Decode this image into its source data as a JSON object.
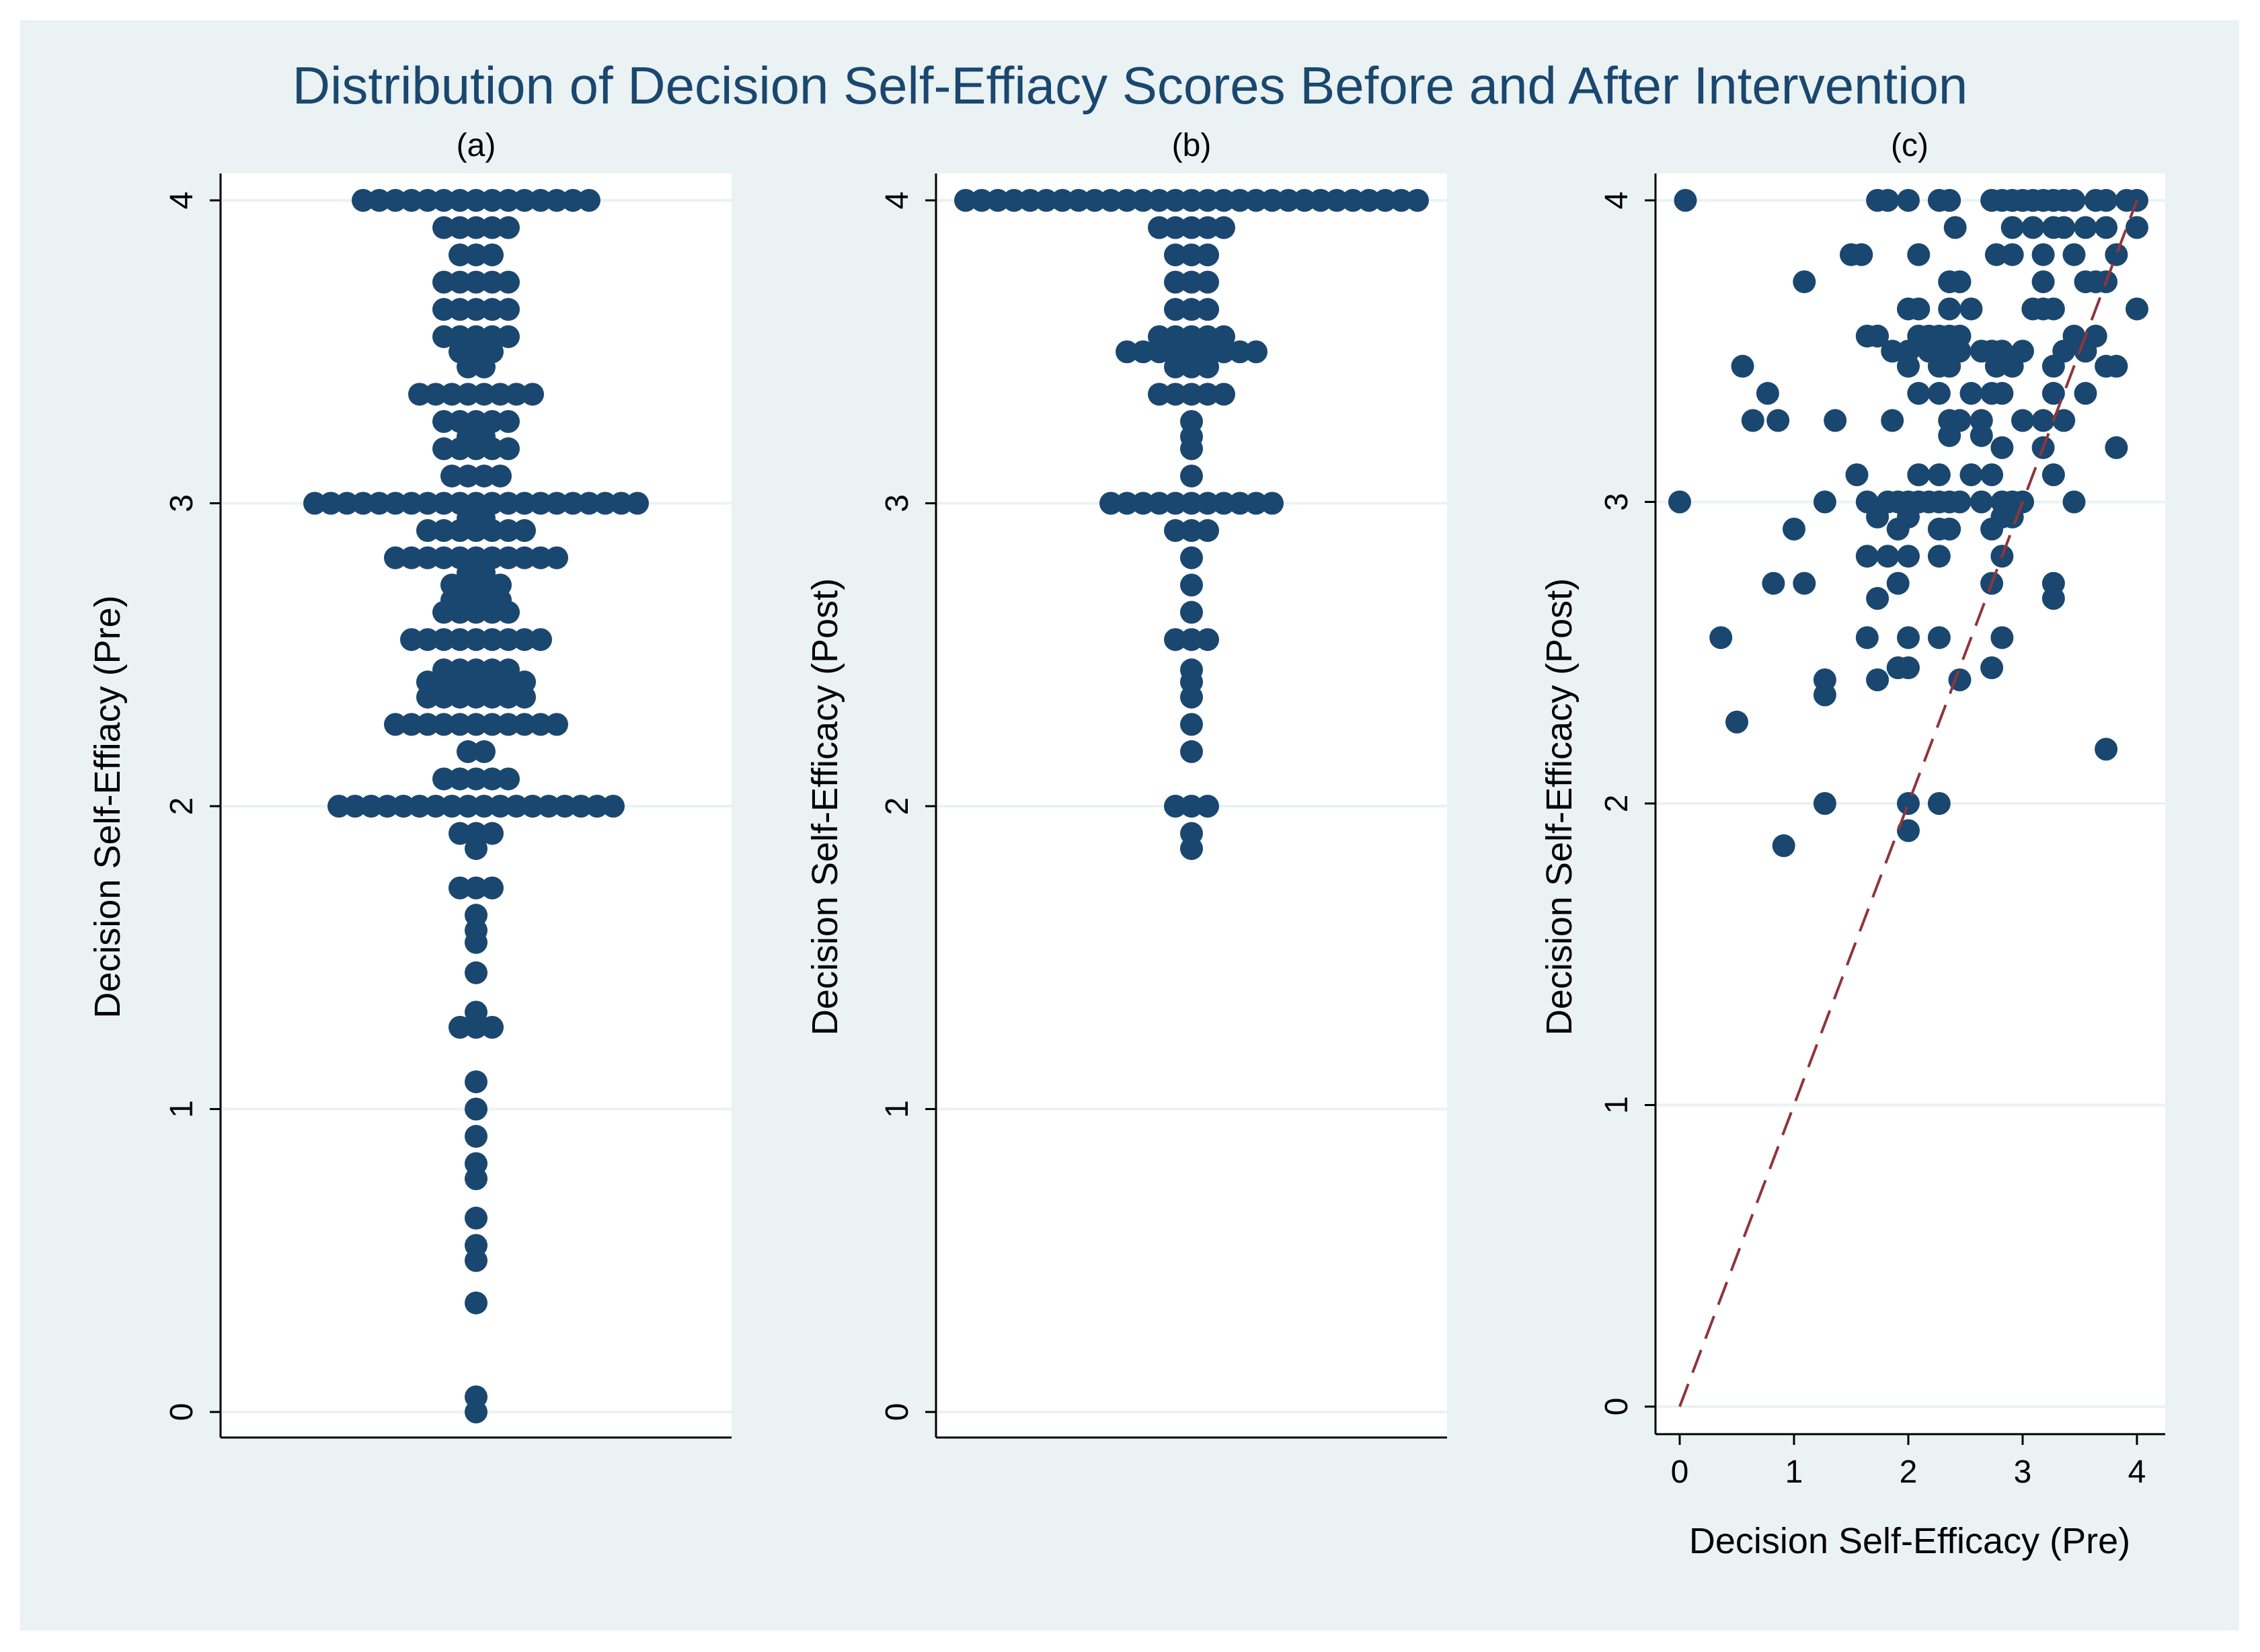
{
  "chart_data": {
    "title": "Distribution of Decision Self-Effiacy Scores Before and After Intervention",
    "colors": {
      "background": "#eaf2f3",
      "marker": "#1a476f",
      "reference_line": "#90353b",
      "grid": "#eaf2f3"
    },
    "panels": [
      {
        "id": "a",
        "type": "dotplot",
        "title": "(a)",
        "ylabel": "Decision Self-Effiacy (Pre)",
        "ylim": [
          0,
          4
        ],
        "yticks": [
          "0",
          "1",
          "2",
          "3",
          "4"
        ],
        "grid": true,
        "groups": [
          {
            "y": 4.0,
            "count": 15
          },
          {
            "y": 3.91,
            "count": 5
          },
          {
            "y": 3.82,
            "count": 3
          },
          {
            "y": 3.73,
            "count": 5
          },
          {
            "y": 3.64,
            "count": 5
          },
          {
            "y": 3.55,
            "count": 5
          },
          {
            "y": 3.5,
            "count": 3
          },
          {
            "y": 3.45,
            "count": 2
          },
          {
            "y": 3.36,
            "count": 8
          },
          {
            "y": 3.27,
            "count": 5
          },
          {
            "y": 3.22,
            "count": 2
          },
          {
            "y": 3.18,
            "count": 5
          },
          {
            "y": 3.09,
            "count": 4
          },
          {
            "y": 3.0,
            "count": 21
          },
          {
            "y": 2.95,
            "count": 2
          },
          {
            "y": 2.91,
            "count": 7
          },
          {
            "y": 2.82,
            "count": 11
          },
          {
            "y": 2.77,
            "count": 2
          },
          {
            "y": 2.73,
            "count": 4
          },
          {
            "y": 2.68,
            "count": 4
          },
          {
            "y": 2.64,
            "count": 5
          },
          {
            "y": 2.55,
            "count": 9
          },
          {
            "y": 2.45,
            "count": 5
          },
          {
            "y": 2.41,
            "count": 7
          },
          {
            "y": 2.36,
            "count": 7
          },
          {
            "y": 2.27,
            "count": 11
          },
          {
            "y": 2.18,
            "count": 2
          },
          {
            "y": 2.09,
            "count": 5
          },
          {
            "y": 2.0,
            "count": 18
          },
          {
            "y": 1.91,
            "count": 3
          },
          {
            "y": 1.86,
            "count": 1
          },
          {
            "y": 1.73,
            "count": 3
          },
          {
            "y": 1.64,
            "count": 1
          },
          {
            "y": 1.59,
            "count": 1
          },
          {
            "y": 1.55,
            "count": 1
          },
          {
            "y": 1.45,
            "count": 1
          },
          {
            "y": 1.32,
            "count": 1
          },
          {
            "y": 1.27,
            "count": 3
          },
          {
            "y": 1.09,
            "count": 1
          },
          {
            "y": 1.0,
            "count": 1
          },
          {
            "y": 0.91,
            "count": 1
          },
          {
            "y": 0.82,
            "count": 1
          },
          {
            "y": 0.77,
            "count": 1
          },
          {
            "y": 0.64,
            "count": 1
          },
          {
            "y": 0.55,
            "count": 1
          },
          {
            "y": 0.5,
            "count": 1
          },
          {
            "y": 0.36,
            "count": 1
          },
          {
            "y": 0.05,
            "count": 1
          },
          {
            "y": 0.0,
            "count": 1
          }
        ]
      },
      {
        "id": "b",
        "type": "dotplot",
        "title": "(b)",
        "ylabel": "Decision Self-Efficacy (Post)",
        "ylim": [
          0,
          4
        ],
        "yticks": [
          "0",
          "1",
          "2",
          "3",
          "4"
        ],
        "grid": true,
        "groups": [
          {
            "y": 4.0,
            "count": 29
          },
          {
            "y": 3.91,
            "count": 5
          },
          {
            "y": 3.82,
            "count": 3
          },
          {
            "y": 3.73,
            "count": 3
          },
          {
            "y": 3.64,
            "count": 3
          },
          {
            "y": 3.55,
            "count": 5
          },
          {
            "y": 3.5,
            "count": 9
          },
          {
            "y": 3.45,
            "count": 3
          },
          {
            "y": 3.36,
            "count": 5
          },
          {
            "y": 3.27,
            "count": 1
          },
          {
            "y": 3.22,
            "count": 1
          },
          {
            "y": 3.18,
            "count": 1
          },
          {
            "y": 3.09,
            "count": 1
          },
          {
            "y": 3.0,
            "count": 11
          },
          {
            "y": 2.91,
            "count": 3
          },
          {
            "y": 2.82,
            "count": 1
          },
          {
            "y": 2.73,
            "count": 1
          },
          {
            "y": 2.64,
            "count": 1
          },
          {
            "y": 2.55,
            "count": 3
          },
          {
            "y": 2.45,
            "count": 1
          },
          {
            "y": 2.41,
            "count": 1
          },
          {
            "y": 2.36,
            "count": 1
          },
          {
            "y": 2.27,
            "count": 1
          },
          {
            "y": 2.18,
            "count": 1
          },
          {
            "y": 2.0,
            "count": 3
          },
          {
            "y": 1.91,
            "count": 1
          },
          {
            "y": 1.86,
            "count": 1
          }
        ]
      },
      {
        "id": "c",
        "type": "scatter",
        "title": "(c)",
        "xlabel": "Decision Self-Efficacy (Pre)",
        "ylabel": "Decision Self-Efficacy (Post)",
        "xlim": [
          0,
          4
        ],
        "ylim": [
          0,
          4
        ],
        "xticks": [
          "0",
          "1",
          "2",
          "3",
          "4"
        ],
        "yticks": [
          "0",
          "1",
          "2",
          "3",
          "4"
        ],
        "grid": true,
        "reference_line": {
          "style": "dashed",
          "from": [
            0,
            0
          ],
          "to": [
            4,
            4
          ]
        },
        "points": [
          [
            0.05,
            4.0
          ],
          [
            1.73,
            4.0
          ],
          [
            1.82,
            4.0
          ],
          [
            2.0,
            4.0
          ],
          [
            2.27,
            4.0
          ],
          [
            2.36,
            4.0
          ],
          [
            2.73,
            4.0
          ],
          [
            2.82,
            4.0
          ],
          [
            2.91,
            4.0
          ],
          [
            3.0,
            4.0
          ],
          [
            3.09,
            4.0
          ],
          [
            3.18,
            4.0
          ],
          [
            3.27,
            4.0
          ],
          [
            3.36,
            4.0
          ],
          [
            3.45,
            4.0
          ],
          [
            3.64,
            4.0
          ],
          [
            3.73,
            4.0
          ],
          [
            3.91,
            4.0
          ],
          [
            4.0,
            4.0
          ],
          [
            2.41,
            3.91
          ],
          [
            2.91,
            3.91
          ],
          [
            3.09,
            3.91
          ],
          [
            3.27,
            3.91
          ],
          [
            3.36,
            3.91
          ],
          [
            3.55,
            3.91
          ],
          [
            3.73,
            3.91
          ],
          [
            4.0,
            3.91
          ],
          [
            1.5,
            3.82
          ],
          [
            1.59,
            3.82
          ],
          [
            2.09,
            3.82
          ],
          [
            2.77,
            3.82
          ],
          [
            2.91,
            3.82
          ],
          [
            3.18,
            3.82
          ],
          [
            3.45,
            3.82
          ],
          [
            3.82,
            3.82
          ],
          [
            1.09,
            3.73
          ],
          [
            2.36,
            3.73
          ],
          [
            2.45,
            3.73
          ],
          [
            3.18,
            3.73
          ],
          [
            3.55,
            3.73
          ],
          [
            3.64,
            3.73
          ],
          [
            3.73,
            3.73
          ],
          [
            2.0,
            3.64
          ],
          [
            2.09,
            3.64
          ],
          [
            2.36,
            3.64
          ],
          [
            2.55,
            3.64
          ],
          [
            3.09,
            3.64
          ],
          [
            3.18,
            3.64
          ],
          [
            3.27,
            3.64
          ],
          [
            4.0,
            3.64
          ],
          [
            1.64,
            3.55
          ],
          [
            1.73,
            3.55
          ],
          [
            2.09,
            3.55
          ],
          [
            2.18,
            3.55
          ],
          [
            2.27,
            3.55
          ],
          [
            2.36,
            3.55
          ],
          [
            2.45,
            3.55
          ],
          [
            3.45,
            3.55
          ],
          [
            3.64,
            3.55
          ],
          [
            1.86,
            3.5
          ],
          [
            2.0,
            3.5
          ],
          [
            2.18,
            3.5
          ],
          [
            2.27,
            3.5
          ],
          [
            2.45,
            3.5
          ],
          [
            2.64,
            3.5
          ],
          [
            2.73,
            3.5
          ],
          [
            2.82,
            3.5
          ],
          [
            3.0,
            3.5
          ],
          [
            3.36,
            3.5
          ],
          [
            3.55,
            3.5
          ],
          [
            0.55,
            3.45
          ],
          [
            2.0,
            3.45
          ],
          [
            2.27,
            3.45
          ],
          [
            2.36,
            3.45
          ],
          [
            2.77,
            3.45
          ],
          [
            2.91,
            3.45
          ],
          [
            3.27,
            3.45
          ],
          [
            3.73,
            3.45
          ],
          [
            3.82,
            3.45
          ],
          [
            0.77,
            3.36
          ],
          [
            2.09,
            3.36
          ],
          [
            2.27,
            3.36
          ],
          [
            2.55,
            3.36
          ],
          [
            2.73,
            3.36
          ],
          [
            2.82,
            3.36
          ],
          [
            3.27,
            3.36
          ],
          [
            3.55,
            3.36
          ],
          [
            0.64,
            3.27
          ],
          [
            0.86,
            3.27
          ],
          [
            1.36,
            3.27
          ],
          [
            1.86,
            3.27
          ],
          [
            2.36,
            3.27
          ],
          [
            2.45,
            3.27
          ],
          [
            2.64,
            3.27
          ],
          [
            3.0,
            3.27
          ],
          [
            3.18,
            3.27
          ],
          [
            3.36,
            3.27
          ],
          [
            2.36,
            3.22
          ],
          [
            2.64,
            3.22
          ],
          [
            2.82,
            3.18
          ],
          [
            3.18,
            3.18
          ],
          [
            3.82,
            3.18
          ],
          [
            1.55,
            3.09
          ],
          [
            2.09,
            3.09
          ],
          [
            2.27,
            3.09
          ],
          [
            2.55,
            3.09
          ],
          [
            2.73,
            3.09
          ],
          [
            3.27,
            3.09
          ],
          [
            0.0,
            3.0
          ],
          [
            1.27,
            3.0
          ],
          [
            1.64,
            3.0
          ],
          [
            1.82,
            3.0
          ],
          [
            1.91,
            3.0
          ],
          [
            2.0,
            3.0
          ],
          [
            2.09,
            3.0
          ],
          [
            2.18,
            3.0
          ],
          [
            2.27,
            3.0
          ],
          [
            2.36,
            3.0
          ],
          [
            2.45,
            3.0
          ],
          [
            2.64,
            3.0
          ],
          [
            2.82,
            3.0
          ],
          [
            2.91,
            3.0
          ],
          [
            3.0,
            3.0
          ],
          [
            3.45,
            3.0
          ],
          [
            1.73,
            2.95
          ],
          [
            2.0,
            2.95
          ],
          [
            2.82,
            2.95
          ],
          [
            2.91,
            2.95
          ],
          [
            1.0,
            2.91
          ],
          [
            1.91,
            2.91
          ],
          [
            2.27,
            2.91
          ],
          [
            2.36,
            2.91
          ],
          [
            2.73,
            2.91
          ],
          [
            1.64,
            2.82
          ],
          [
            1.82,
            2.82
          ],
          [
            2.0,
            2.82
          ],
          [
            2.27,
            2.82
          ],
          [
            2.82,
            2.82
          ],
          [
            0.82,
            2.73
          ],
          [
            1.09,
            2.73
          ],
          [
            1.91,
            2.73
          ],
          [
            2.73,
            2.73
          ],
          [
            3.27,
            2.73
          ],
          [
            1.73,
            2.68
          ],
          [
            3.27,
            2.68
          ],
          [
            0.36,
            2.55
          ],
          [
            1.64,
            2.55
          ],
          [
            2.0,
            2.55
          ],
          [
            2.27,
            2.55
          ],
          [
            2.82,
            2.55
          ],
          [
            1.91,
            2.45
          ],
          [
            2.0,
            2.45
          ],
          [
            2.73,
            2.45
          ],
          [
            1.27,
            2.41
          ],
          [
            1.73,
            2.41
          ],
          [
            2.45,
            2.41
          ],
          [
            1.27,
            2.36
          ],
          [
            0.5,
            2.27
          ],
          [
            3.73,
            2.18
          ],
          [
            1.27,
            2.0
          ],
          [
            2.0,
            2.0
          ],
          [
            2.27,
            2.0
          ],
          [
            2.0,
            1.91
          ],
          [
            0.91,
            1.86
          ]
        ]
      }
    ]
  }
}
